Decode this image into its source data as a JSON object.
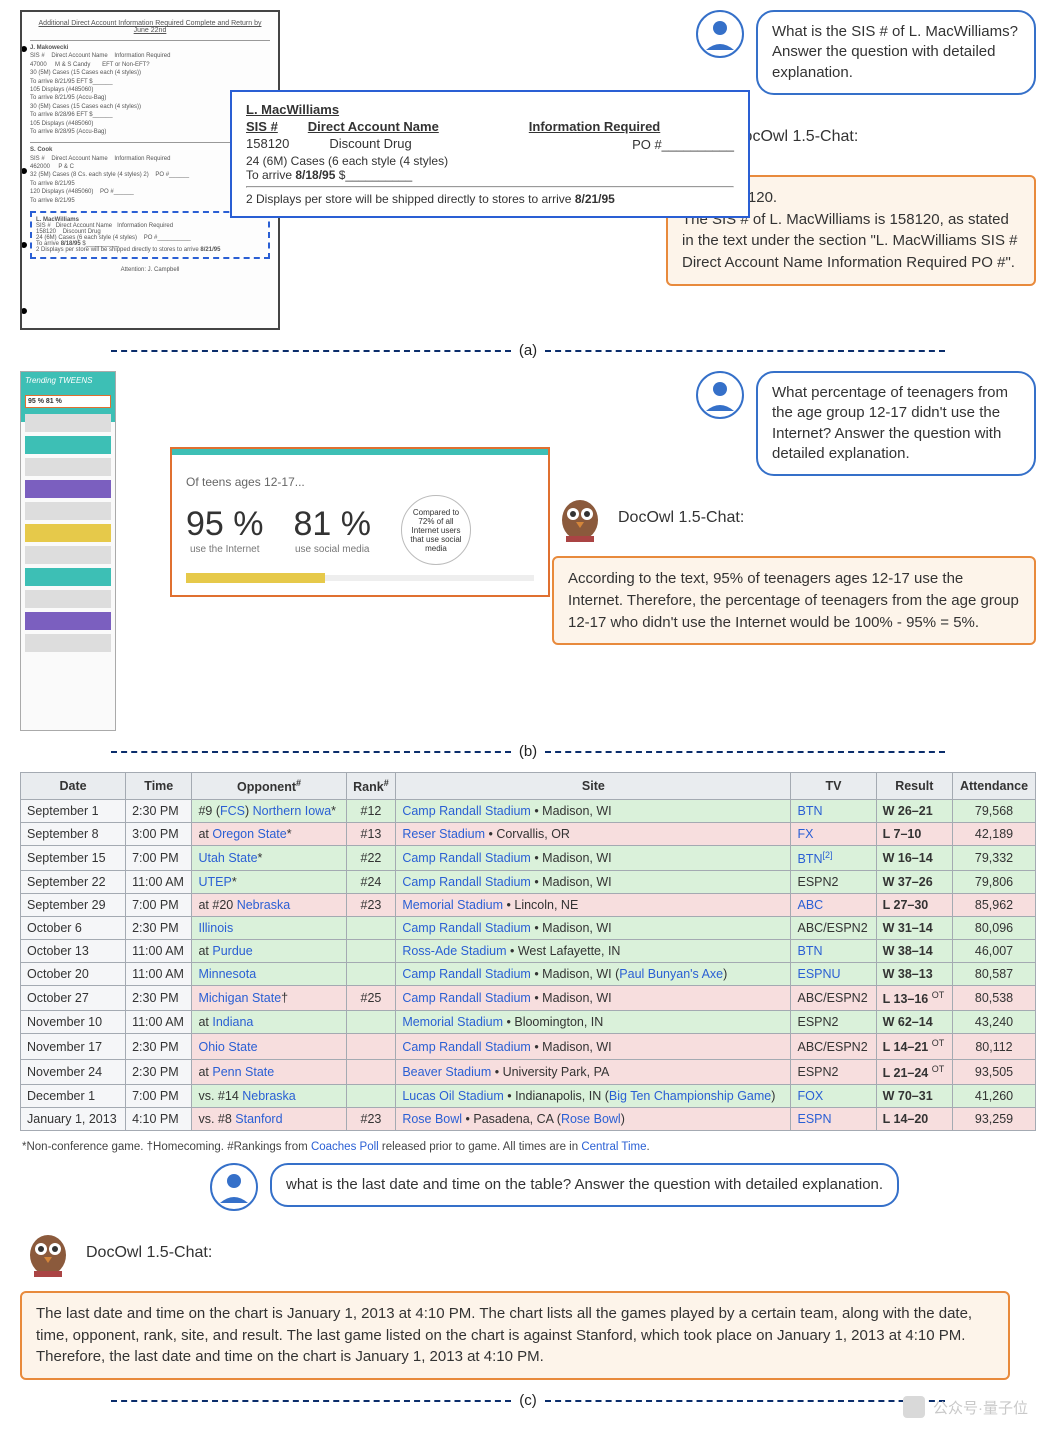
{
  "section_a": {
    "doc_header": "Additional Direct Account Information Required\nComplete and Return by June 22nd",
    "account1": {
      "name": "J. Makowecki",
      "sis_label": "SIS #",
      "sis": "47000",
      "dan_label": "Direct Account Name",
      "dan": "M & S Candy",
      "info_label": "Information Required",
      "info": "EFT or Non-EFT?",
      "l1": "30 (5M) Cases (15 Cases each (4 styles))",
      "l2": "To arrive 8/21/95   EFT $______",
      "l3": "105 Displays  (#485060)",
      "l4": "To arrive 8/21/95 (Accu-Bag)",
      "l5": "30 (5M) Cases (15 Cases each (4 styles))",
      "l6": "To arrive 8/28/96   EFT $______",
      "l7": "105 Displays  (#485060)",
      "l8": "To arrive 8/28/95 (Accu-Bag)"
    },
    "account2": {
      "name": "S. Cook",
      "sis": "462000",
      "dan": "P & C",
      "l1": "32 (5M) Cases (8 Cs. each style (4 styles) 2)",
      "l2": "To arrive 8/21/95",
      "po": "PO #______",
      "l3": "120 Displays (#485060)",
      "l4": "To arrive 8/21/95"
    },
    "attention": "Attention: J. Campbell",
    "callout": {
      "name": "L. MacWilliams",
      "sis_h": "SIS #",
      "dan_h": "Direct Account Name",
      "info_h": "Information Required",
      "sis": "158120",
      "dan": "Discount Drug",
      "line1": "24 (6M) Cases (6 each style (4 styles)",
      "po": "PO #__________",
      "line2_a": "To arrive ",
      "line2_b": "8/18/95",
      "line2_c": "   $__________",
      "line3_a": "2 Displays per store will be shipped directly to stores to arrive ",
      "line3_b": "8/21/95"
    },
    "question": "What is the SIS # of L. MacWilliams? Answer the question with detailed explanation.",
    "model_label": "DocOwl 1.5-Chat:",
    "answer": "SIS # 158120.\nThe SIS # of L. MacWilliams is 158120, as stated in the text under the section \"L. MacWilliams SIS # Direct Account Name Information Required PO #\"."
  },
  "section_b": {
    "thumb_title": "Trending TWEENS",
    "thumb_pcts": "95 %   81 %",
    "callout": {
      "of": "Of teens ages 12-17...",
      "p1": "95 %",
      "p1_sub": "use the Internet",
      "p2": "81 %",
      "p2_sub": "use social media",
      "circle": "Compared to 72% of all Internet users that use social media"
    },
    "question": "What percentage of teenagers from the age group 12-17 didn't use the Internet? Answer the question with detailed explanation.",
    "model_label": "DocOwl 1.5-Chat:",
    "answer": "According to the text, 95% of teenagers ages 12-17 use the Internet. Therefore, the percentage of teenagers from the age group 12-17 who didn't use the Internet would be 100% - 95% = 5%."
  },
  "section_c": {
    "columns": [
      "Date",
      "Time",
      "Opponent#",
      "Rank#",
      "Site",
      "TV",
      "Result",
      "Attendance"
    ],
    "rows": [
      {
        "res": "win",
        "date": "September 1",
        "time": "2:30 PM",
        "opp_pre": "#9 (",
        "opp_lk": "FCS",
        "opp_post": ") ",
        "opp_lk2": "Northern Iowa",
        "opp_suf": "*",
        "rank": "#12",
        "site_lk": "Camp Randall Stadium",
        "site_mid": " • ",
        "site_loc": "Madison, WI",
        "tv": "BTN",
        "tv_lk": true,
        "result": "W 26–21",
        "att": "79,568"
      },
      {
        "res": "loss",
        "date": "September 8",
        "time": "3:00 PM",
        "opp_pre": "at ",
        "opp_lk": "Oregon State",
        "opp_suf": "*",
        "rank": "#13",
        "site_lk": "Reser Stadium",
        "site_mid": " • ",
        "site_loc": "Corvallis, OR",
        "tv": "FX",
        "tv_lk": true,
        "result": "L 7–10",
        "att": "42,189"
      },
      {
        "res": "win",
        "date": "September 15",
        "time": "7:00 PM",
        "opp_pre": "",
        "opp_lk": "Utah State",
        "opp_suf": "*",
        "rank": "#22",
        "site_lk": "Camp Randall Stadium",
        "site_mid": " • ",
        "site_loc": "Madison, WI",
        "tv": "BTN",
        "tv_lk": true,
        "tv_sup": "[2]",
        "result": "W 16–14",
        "att": "79,332"
      },
      {
        "res": "win",
        "date": "September 22",
        "time": "11:00 AM",
        "opp_pre": "",
        "opp_lk": "UTEP",
        "opp_suf": "*",
        "rank": "#24",
        "site_lk": "Camp Randall Stadium",
        "site_mid": " • ",
        "site_loc": "Madison, WI",
        "tv": "ESPN2",
        "result": "W 37–26",
        "att": "79,806"
      },
      {
        "res": "loss",
        "date": "September 29",
        "time": "7:00 PM",
        "opp_pre": "at #20 ",
        "opp_lk": "Nebraska",
        "rank": "#23",
        "site_lk": "Memorial Stadium",
        "site_mid": " • ",
        "site_loc": "Lincoln, NE",
        "tv": "ABC",
        "tv_lk": true,
        "result": "L 27–30",
        "att": "85,962"
      },
      {
        "res": "win",
        "date": "October 6",
        "time": "2:30 PM",
        "opp_pre": "",
        "opp_lk": "Illinois",
        "rank": "",
        "site_lk": "Camp Randall Stadium",
        "site_mid": " • ",
        "site_loc": "Madison, WI",
        "tv": "ABC/ESPN2",
        "result": "W 31–14",
        "att": "80,096"
      },
      {
        "res": "win",
        "date": "October 13",
        "time": "11:00 AM",
        "opp_pre": "at ",
        "opp_lk": "Purdue",
        "rank": "",
        "site_lk": "Ross-Ade Stadium",
        "site_mid": " • ",
        "site_loc": "West Lafayette, IN",
        "tv": "BTN",
        "tv_lk": true,
        "result": "W 38–14",
        "att": "46,007"
      },
      {
        "res": "win",
        "date": "October 20",
        "time": "11:00 AM",
        "opp_pre": "",
        "opp_lk": "Minnesota",
        "rank": "",
        "site_lk": "Camp Randall Stadium",
        "site_mid": " • ",
        "site_loc": "Madison, WI (",
        "site_lk2": "Paul Bunyan's Axe",
        "site_suf": ")",
        "tv": "ESPNU",
        "tv_lk": true,
        "result": "W 38–13",
        "att": "80,587"
      },
      {
        "res": "loss",
        "date": "October 27",
        "time": "2:30 PM",
        "opp_pre": "",
        "opp_lk": "Michigan State",
        "opp_suf": "†",
        "rank": "#25",
        "site_lk": "Camp Randall Stadium",
        "site_mid": " • ",
        "site_loc": "Madison, WI",
        "tv": "ABC/ESPN2",
        "result": "L 13–16 ",
        "res_sup": "OT",
        "att": "80,538"
      },
      {
        "res": "win",
        "date": "November 10",
        "time": "11:00 AM",
        "opp_pre": "at ",
        "opp_lk": "Indiana",
        "rank": "",
        "site_lk": "Memorial Stadium",
        "site_mid": " • ",
        "site_loc": "Bloomington, IN",
        "tv": "ESPN2",
        "result": "W 62–14",
        "att": "43,240"
      },
      {
        "res": "loss",
        "date": "November 17",
        "time": "2:30 PM",
        "opp_pre": "",
        "opp_lk": "Ohio State",
        "rank": "",
        "site_lk": "Camp Randall Stadium",
        "site_mid": " • ",
        "site_loc": "Madison, WI",
        "tv": "ABC/ESPN2",
        "result": "L 14–21 ",
        "res_sup": "OT",
        "att": "80,112"
      },
      {
        "res": "loss",
        "date": "November 24",
        "time": "2:30 PM",
        "opp_pre": "at ",
        "opp_lk": "Penn State",
        "rank": "",
        "site_lk": "Beaver Stadium",
        "site_mid": " • ",
        "site_loc": "University Park, PA",
        "tv": "ESPN2",
        "result": "L 21–24 ",
        "res_sup": "OT",
        "att": "93,505"
      },
      {
        "res": "win",
        "date": "December 1",
        "time": "7:00 PM",
        "opp_pre": "vs. #14 ",
        "opp_lk": "Nebraska",
        "rank": "",
        "site_lk": "Lucas Oil Stadium",
        "site_mid": " • ",
        "site_loc": "Indianapolis, IN (",
        "site_lk2": "Big Ten Championship Game",
        "site_suf": ")",
        "tv": "FOX",
        "tv_lk": true,
        "result": "W 70–31",
        "att": "41,260"
      },
      {
        "res": "loss",
        "date": "January 1, 2013",
        "time": "4:10 PM",
        "opp_pre": "vs. #8 ",
        "opp_lk": "Stanford",
        "rank": "#23",
        "site_lk": "Rose Bowl",
        "site_mid": " • ",
        "site_loc": "Pasadena, CA (",
        "site_lk2": "Rose Bowl",
        "site_suf": ")",
        "tv": "ESPN",
        "tv_lk": true,
        "result": "L 14–20",
        "att": "93,259"
      }
    ],
    "footnote_a": "*Non-conference game. ",
    "footnote_b": "†Homecoming. ",
    "footnote_c": "#Rankings from ",
    "footnote_lk": "Coaches Poll",
    "footnote_d": " released prior to game. All times are in ",
    "footnote_lk2": "Central Time",
    "footnote_e": ".",
    "question": "what is the last date and time on the table? Answer the question with detailed explanation.",
    "model_label": "DocOwl 1.5-Chat:",
    "answer": "The last date and time on the chart is January 1, 2013 at 4:10 PM. The chart lists all the games played by a certain team, along with the date, time, opponent, rank, site, and result. The last game listed on the chart is against Stanford, which took place on January 1, 2013 at 4:10 PM. Therefore, the last date and time on the chart is January 1, 2013 at 4:10 PM."
  },
  "labels": {
    "a": "(a)",
    "b": "(b)",
    "c": "(c)"
  },
  "watermark": "公众号·量子位"
}
